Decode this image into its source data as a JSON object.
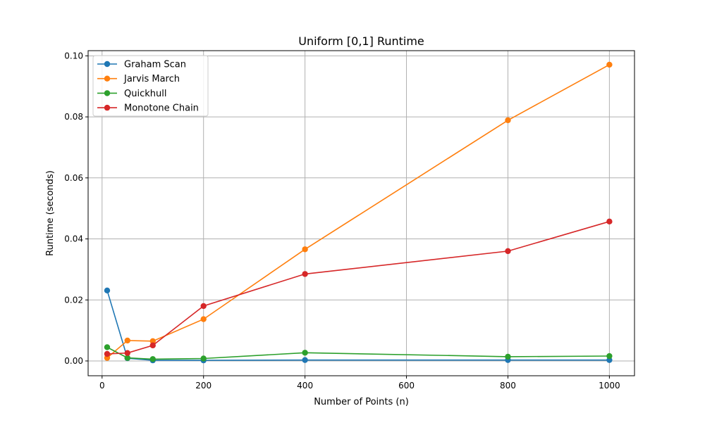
{
  "chart_data": {
    "type": "line",
    "title": "Uniform [0,1] Runtime",
    "xlabel": "Number of Points (n)",
    "ylabel": "Runtime (seconds)",
    "xlim": [
      -27.5,
      1049.5
    ],
    "ylim": [
      -0.00485,
      0.1017
    ],
    "grid": true,
    "legend_position": "top-left",
    "x_ticks": [
      0,
      200,
      400,
      600,
      800,
      1000
    ],
    "x_tick_labels": [
      "0",
      "200",
      "400",
      "600",
      "800",
      "1000"
    ],
    "y_ticks": [
      0.0,
      0.02,
      0.04,
      0.06,
      0.08,
      0.1
    ],
    "y_tick_labels": [
      "0.00",
      "0.02",
      "0.04",
      "0.06",
      "0.08",
      "0.10"
    ],
    "x": [
      10,
      50,
      100,
      200,
      400,
      800,
      1000
    ],
    "series": [
      {
        "name": "Graham Scan",
        "color": "#1f77b4",
        "values": [
          0.0231,
          0.0009,
          0.0002,
          0.0002,
          0.0003,
          0.0003,
          0.0003
        ]
      },
      {
        "name": "Jarvis March",
        "color": "#ff7f0e",
        "values": [
          0.001,
          0.0067,
          0.0065,
          0.0137,
          0.0366,
          0.0789,
          0.0971
        ]
      },
      {
        "name": "Quickhull",
        "color": "#2ca02c",
        "values": [
          0.0045,
          0.001,
          0.0006,
          0.0008,
          0.0027,
          0.0014,
          0.0016
        ]
      },
      {
        "name": "Monotone Chain",
        "color": "#d62728",
        "values": [
          0.0023,
          0.0026,
          0.0051,
          0.018,
          0.0285,
          0.036,
          0.0457
        ]
      }
    ]
  }
}
